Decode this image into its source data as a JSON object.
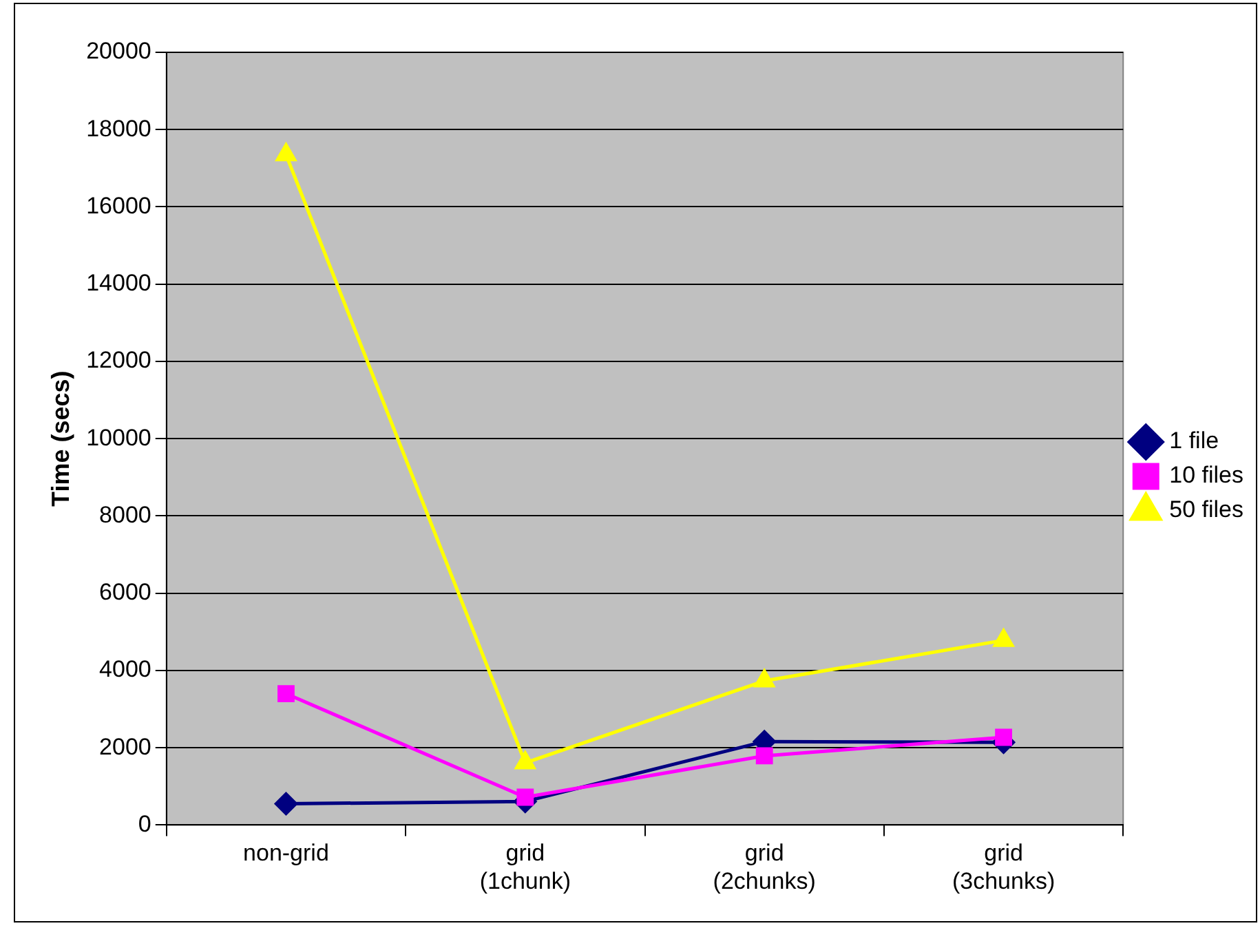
{
  "chart_data": {
    "type": "line",
    "ylabel": "Time (secs)",
    "categories": [
      "non-grid",
      "grid\n(1chunk)",
      "grid\n(2chunks)",
      "grid\n(3chunks)"
    ],
    "ylim": [
      0,
      20000
    ],
    "yticks": [
      0,
      2000,
      4000,
      6000,
      8000,
      10000,
      12000,
      14000,
      16000,
      18000,
      20000
    ],
    "grid": "y",
    "legend": "right",
    "series": [
      {
        "name": "1 file",
        "color": "#000080",
        "marker": "diamond",
        "values": [
          550,
          610,
          2160,
          2140
        ]
      },
      {
        "name": "10 files",
        "color": "#ff00ff",
        "marker": "square",
        "values": [
          3400,
          720,
          1790,
          2270
        ]
      },
      {
        "name": "50 files",
        "color": "#ffff00",
        "marker": "triangle",
        "values": [
          17350,
          1610,
          3730,
          4780
        ]
      }
    ]
  }
}
